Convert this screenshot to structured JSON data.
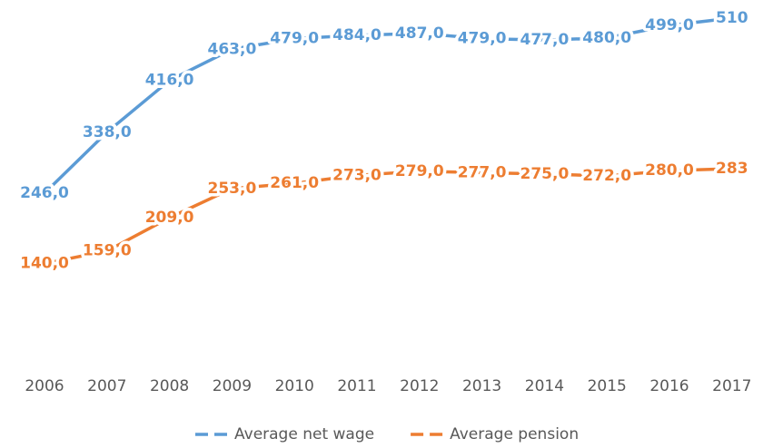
{
  "chart_data": {
    "type": "line",
    "categories": [
      "2006",
      "2007",
      "2008",
      "2009",
      "2010",
      "2011",
      "2012",
      "2013",
      "2014",
      "2015",
      "2016",
      "2017"
    ],
    "series": [
      {
        "name": "Average net wage",
        "color": "#5b9bd5",
        "values": [
          246,
          338,
          416,
          463,
          479,
          484,
          487,
          479,
          477,
          480,
          499,
          510
        ],
        "value_labels": [
          "246,0",
          "338,0",
          "416,0",
          "463,0",
          "479,0",
          "484,0",
          "487,0",
          "479,0",
          "477,0",
          "480,0",
          "499,0",
          "510"
        ]
      },
      {
        "name": "Average pension",
        "color": "#ed7d31",
        "values": [
          140,
          159,
          209,
          253,
          261,
          273,
          279,
          277,
          275,
          272,
          280,
          283
        ],
        "value_labels": [
          "140,0",
          "159,0",
          "209,0",
          "253,0",
          "261,0",
          "273,0",
          "279,0",
          "277,0",
          "275,0",
          "272,0",
          "280,0",
          "283"
        ]
      }
    ],
    "ylim": [
      0,
      540
    ],
    "legend": "bottom"
  }
}
